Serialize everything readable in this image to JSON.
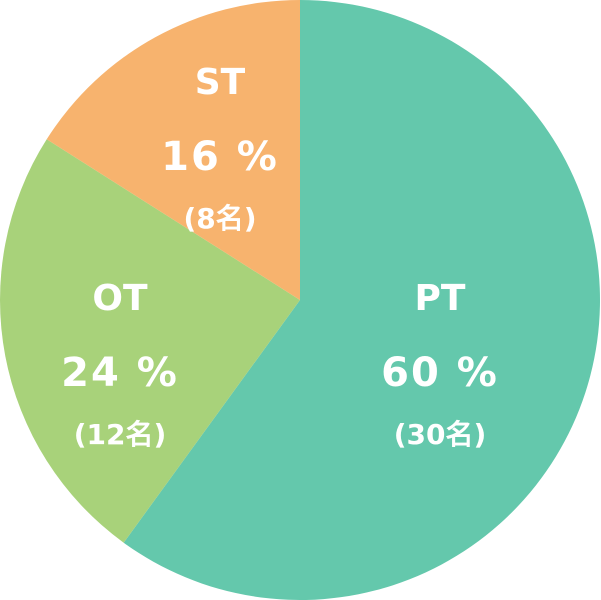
{
  "chart_data": {
    "type": "pie",
    "categories": [
      "PT",
      "OT",
      "ST"
    ],
    "values": [
      60,
      24,
      16
    ],
    "value_labels": [
      "60 %",
      "24 %",
      "16 %"
    ],
    "count_labels": [
      "(30名)",
      "(12名)",
      "(8名)"
    ],
    "colors": [
      "#64c8ac",
      "#a8d27a",
      "#f7b36e"
    ]
  }
}
